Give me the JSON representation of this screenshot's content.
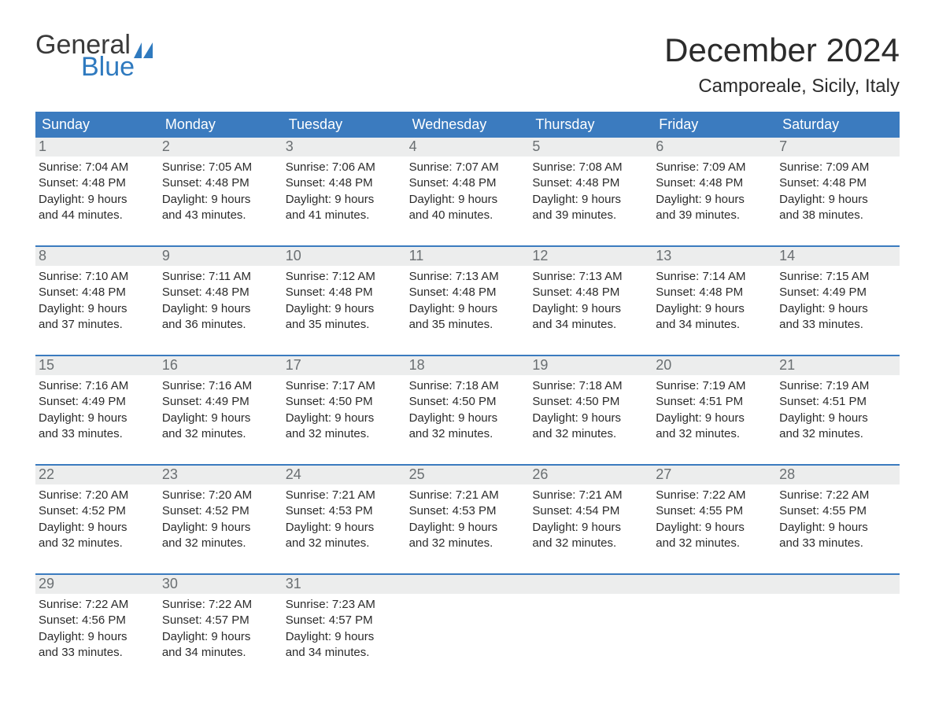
{
  "brand": {
    "word1": "General",
    "word2": "Blue",
    "flag_color": "#2f7abf",
    "text_dark": "#3a3a3a"
  },
  "title": "December 2024",
  "location": "Camporeale, Sicily, Italy",
  "colors": {
    "header_bg": "#3b7bbf",
    "header_text": "#ffffff",
    "daynum_bg": "#eceded",
    "daynum_text": "#6a6f72",
    "body_text": "#2b2b2b",
    "week_border": "#3b7bbf",
    "page_bg": "#ffffff"
  },
  "fonts": {
    "title_size_pt": 32,
    "location_size_pt": 18,
    "weekday_size_pt": 14,
    "daynum_size_pt": 14,
    "body_size_pt": 11
  },
  "weekdays": [
    "Sunday",
    "Monday",
    "Tuesday",
    "Wednesday",
    "Thursday",
    "Friday",
    "Saturday"
  ],
  "weeks": [
    [
      {
        "n": "1",
        "sunrise": "Sunrise: 7:04 AM",
        "sunset": "Sunset: 4:48 PM",
        "d1": "Daylight: 9 hours",
        "d2": "and 44 minutes."
      },
      {
        "n": "2",
        "sunrise": "Sunrise: 7:05 AM",
        "sunset": "Sunset: 4:48 PM",
        "d1": "Daylight: 9 hours",
        "d2": "and 43 minutes."
      },
      {
        "n": "3",
        "sunrise": "Sunrise: 7:06 AM",
        "sunset": "Sunset: 4:48 PM",
        "d1": "Daylight: 9 hours",
        "d2": "and 41 minutes."
      },
      {
        "n": "4",
        "sunrise": "Sunrise: 7:07 AM",
        "sunset": "Sunset: 4:48 PM",
        "d1": "Daylight: 9 hours",
        "d2": "and 40 minutes."
      },
      {
        "n": "5",
        "sunrise": "Sunrise: 7:08 AM",
        "sunset": "Sunset: 4:48 PM",
        "d1": "Daylight: 9 hours",
        "d2": "and 39 minutes."
      },
      {
        "n": "6",
        "sunrise": "Sunrise: 7:09 AM",
        "sunset": "Sunset: 4:48 PM",
        "d1": "Daylight: 9 hours",
        "d2": "and 39 minutes."
      },
      {
        "n": "7",
        "sunrise": "Sunrise: 7:09 AM",
        "sunset": "Sunset: 4:48 PM",
        "d1": "Daylight: 9 hours",
        "d2": "and 38 minutes."
      }
    ],
    [
      {
        "n": "8",
        "sunrise": "Sunrise: 7:10 AM",
        "sunset": "Sunset: 4:48 PM",
        "d1": "Daylight: 9 hours",
        "d2": "and 37 minutes."
      },
      {
        "n": "9",
        "sunrise": "Sunrise: 7:11 AM",
        "sunset": "Sunset: 4:48 PM",
        "d1": "Daylight: 9 hours",
        "d2": "and 36 minutes."
      },
      {
        "n": "10",
        "sunrise": "Sunrise: 7:12 AM",
        "sunset": "Sunset: 4:48 PM",
        "d1": "Daylight: 9 hours",
        "d2": "and 35 minutes."
      },
      {
        "n": "11",
        "sunrise": "Sunrise: 7:13 AM",
        "sunset": "Sunset: 4:48 PM",
        "d1": "Daylight: 9 hours",
        "d2": "and 35 minutes."
      },
      {
        "n": "12",
        "sunrise": "Sunrise: 7:13 AM",
        "sunset": "Sunset: 4:48 PM",
        "d1": "Daylight: 9 hours",
        "d2": "and 34 minutes."
      },
      {
        "n": "13",
        "sunrise": "Sunrise: 7:14 AM",
        "sunset": "Sunset: 4:48 PM",
        "d1": "Daylight: 9 hours",
        "d2": "and 34 minutes."
      },
      {
        "n": "14",
        "sunrise": "Sunrise: 7:15 AM",
        "sunset": "Sunset: 4:49 PM",
        "d1": "Daylight: 9 hours",
        "d2": "and 33 minutes."
      }
    ],
    [
      {
        "n": "15",
        "sunrise": "Sunrise: 7:16 AM",
        "sunset": "Sunset: 4:49 PM",
        "d1": "Daylight: 9 hours",
        "d2": "and 33 minutes."
      },
      {
        "n": "16",
        "sunrise": "Sunrise: 7:16 AM",
        "sunset": "Sunset: 4:49 PM",
        "d1": "Daylight: 9 hours",
        "d2": "and 32 minutes."
      },
      {
        "n": "17",
        "sunrise": "Sunrise: 7:17 AM",
        "sunset": "Sunset: 4:50 PM",
        "d1": "Daylight: 9 hours",
        "d2": "and 32 minutes."
      },
      {
        "n": "18",
        "sunrise": "Sunrise: 7:18 AM",
        "sunset": "Sunset: 4:50 PM",
        "d1": "Daylight: 9 hours",
        "d2": "and 32 minutes."
      },
      {
        "n": "19",
        "sunrise": "Sunrise: 7:18 AM",
        "sunset": "Sunset: 4:50 PM",
        "d1": "Daylight: 9 hours",
        "d2": "and 32 minutes."
      },
      {
        "n": "20",
        "sunrise": "Sunrise: 7:19 AM",
        "sunset": "Sunset: 4:51 PM",
        "d1": "Daylight: 9 hours",
        "d2": "and 32 minutes."
      },
      {
        "n": "21",
        "sunrise": "Sunrise: 7:19 AM",
        "sunset": "Sunset: 4:51 PM",
        "d1": "Daylight: 9 hours",
        "d2": "and 32 minutes."
      }
    ],
    [
      {
        "n": "22",
        "sunrise": "Sunrise: 7:20 AM",
        "sunset": "Sunset: 4:52 PM",
        "d1": "Daylight: 9 hours",
        "d2": "and 32 minutes."
      },
      {
        "n": "23",
        "sunrise": "Sunrise: 7:20 AM",
        "sunset": "Sunset: 4:52 PM",
        "d1": "Daylight: 9 hours",
        "d2": "and 32 minutes."
      },
      {
        "n": "24",
        "sunrise": "Sunrise: 7:21 AM",
        "sunset": "Sunset: 4:53 PM",
        "d1": "Daylight: 9 hours",
        "d2": "and 32 minutes."
      },
      {
        "n": "25",
        "sunrise": "Sunrise: 7:21 AM",
        "sunset": "Sunset: 4:53 PM",
        "d1": "Daylight: 9 hours",
        "d2": "and 32 minutes."
      },
      {
        "n": "26",
        "sunrise": "Sunrise: 7:21 AM",
        "sunset": "Sunset: 4:54 PM",
        "d1": "Daylight: 9 hours",
        "d2": "and 32 minutes."
      },
      {
        "n": "27",
        "sunrise": "Sunrise: 7:22 AM",
        "sunset": "Sunset: 4:55 PM",
        "d1": "Daylight: 9 hours",
        "d2": "and 32 minutes."
      },
      {
        "n": "28",
        "sunrise": "Sunrise: 7:22 AM",
        "sunset": "Sunset: 4:55 PM",
        "d1": "Daylight: 9 hours",
        "d2": "and 33 minutes."
      }
    ],
    [
      {
        "n": "29",
        "sunrise": "Sunrise: 7:22 AM",
        "sunset": "Sunset: 4:56 PM",
        "d1": "Daylight: 9 hours",
        "d2": "and 33 minutes."
      },
      {
        "n": "30",
        "sunrise": "Sunrise: 7:22 AM",
        "sunset": "Sunset: 4:57 PM",
        "d1": "Daylight: 9 hours",
        "d2": "and 34 minutes."
      },
      {
        "n": "31",
        "sunrise": "Sunrise: 7:23 AM",
        "sunset": "Sunset: 4:57 PM",
        "d1": "Daylight: 9 hours",
        "d2": "and 34 minutes."
      },
      null,
      null,
      null,
      null
    ]
  ]
}
